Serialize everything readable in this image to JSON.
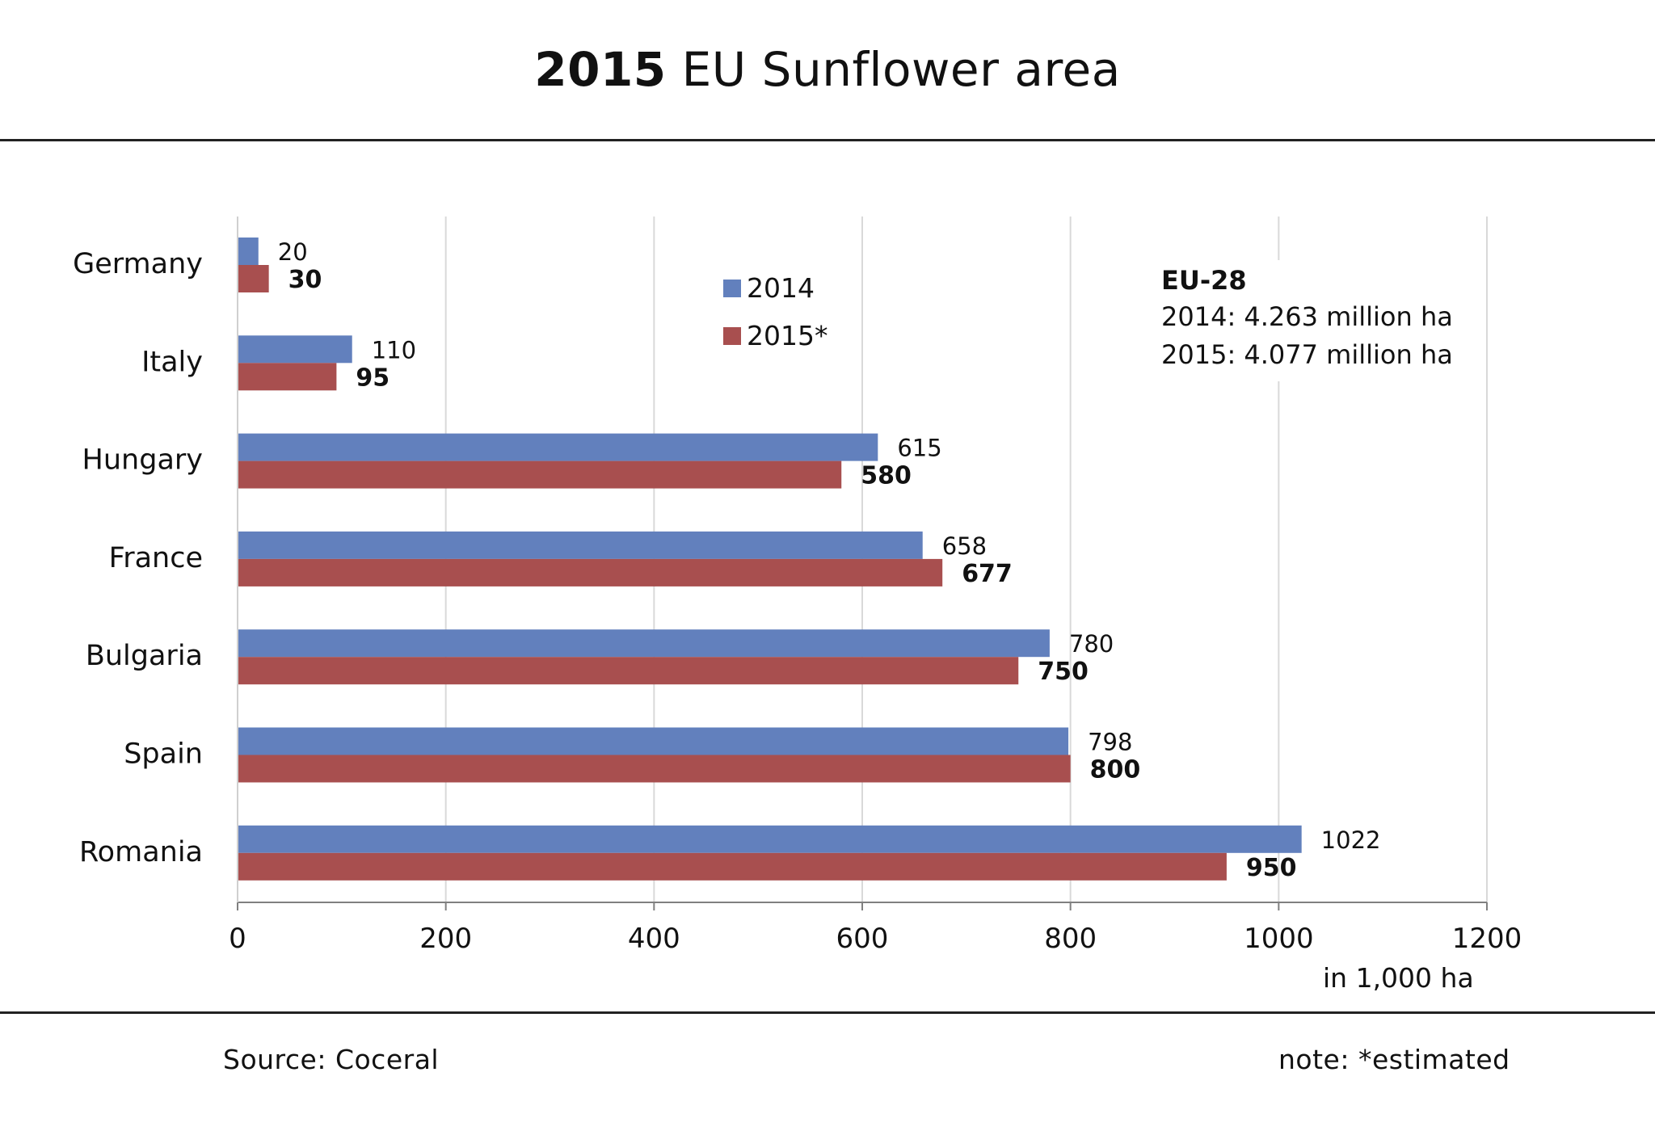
{
  "chart_data": {
    "type": "bar",
    "orientation": "horizontal",
    "title_year": "2015",
    "title_text": "EU Sunflower area",
    "categories": [
      "Germany",
      "Italy",
      "Hungary",
      "France",
      "Bulgaria",
      "Spain",
      "Romania"
    ],
    "series": [
      {
        "name": "2014",
        "color": "#6280bd",
        "values": [
          20,
          110,
          615,
          658,
          780,
          798,
          1022
        ]
      },
      {
        "name": "2015*",
        "color": "#a84f4f",
        "values": [
          30,
          95,
          580,
          677,
          750,
          800,
          950
        ]
      }
    ],
    "xlim": [
      0,
      1200
    ],
    "xticks": [
      "0",
      "200",
      "400",
      "600",
      "800",
      "1000",
      "1200"
    ],
    "xlabel": "in 1,000  ha",
    "grid": true,
    "legend_position": "top-center",
    "annotation": {
      "heading": "EU-28",
      "line1": "2014: 4.263 million ha",
      "line2": "2015: 4.077 million ha"
    }
  },
  "footer": {
    "source": "Source:  Coceral",
    "note": "note: *estimated"
  }
}
